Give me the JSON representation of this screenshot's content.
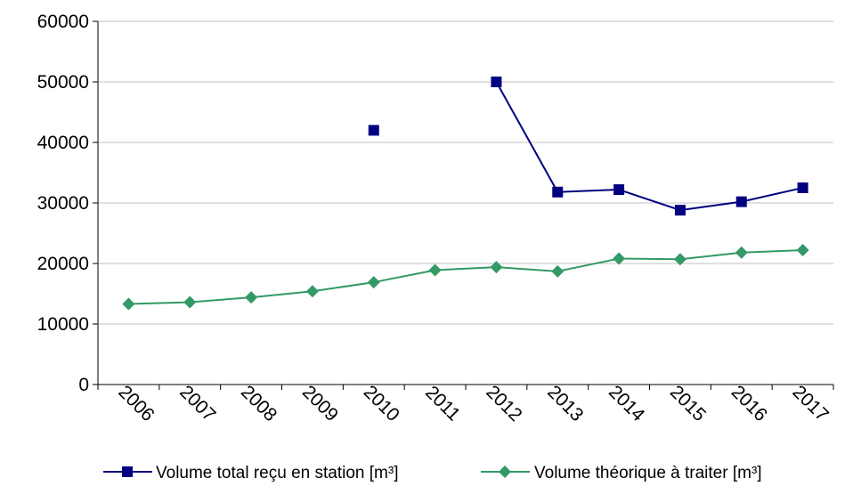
{
  "chart_data": {
    "type": "line",
    "categories": [
      "2006",
      "2007",
      "2008",
      "2009",
      "2010",
      "2011",
      "2012",
      "2013",
      "2014",
      "2015",
      "2016",
      "2017"
    ],
    "series": [
      {
        "name": "Volume total reçu en station [m³]",
        "color": "#000080",
        "marker": "square",
        "values": [
          null,
          null,
          null,
          null,
          42000,
          null,
          50000,
          31800,
          32200,
          28800,
          30200,
          32500
        ]
      },
      {
        "name": "Volume théorique à traiter [m³]",
        "color": "#339966",
        "marker": "diamond",
        "values": [
          13300,
          13600,
          14400,
          15400,
          16900,
          18900,
          19400,
          18700,
          20800,
          20700,
          21800,
          22200
        ]
      }
    ],
    "y_ticks": [
      "0",
      "10000",
      "20000",
      "30000",
      "40000",
      "50000",
      "60000"
    ],
    "ylim": [
      0,
      60000
    ],
    "grid": "horizontal",
    "legend": "bottom"
  }
}
